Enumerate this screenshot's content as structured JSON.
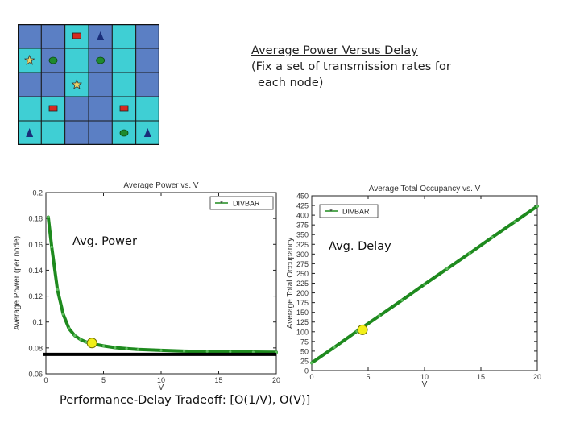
{
  "note": {
    "line1": "Average Power Versus Delay",
    "line2": "(Fix a set of transmission rates for",
    "line3": "each node)"
  },
  "labels": {
    "power": "Avg. Power",
    "delay": "Avg. Delay",
    "tradeoff": "Performance-Delay Tradeoff:  [O(1/V), O(V)]"
  },
  "colors": {
    "cell_dark": "#5b7fc4",
    "cell_light": "#3fcfd4",
    "curve": "#1e8a1e",
    "marker": "#f2ef1a",
    "floor_line": "#000000"
  },
  "network_grid": {
    "rows": 5,
    "cols": 6,
    "cell_pattern": [
      [
        "dark",
        "dark",
        "light",
        "dark",
        "light",
        "dark"
      ],
      [
        "light",
        "dark",
        "light",
        "dark",
        "light",
        "dark"
      ],
      [
        "dark",
        "dark",
        "light",
        "dark",
        "light",
        "dark"
      ],
      [
        "light",
        "light",
        "dark",
        "dark",
        "light",
        "light"
      ],
      [
        "light",
        "light",
        "dark",
        "dark",
        "light",
        "light"
      ]
    ],
    "nodes": [
      {
        "row": 0,
        "col": 2,
        "type": "square-icon"
      },
      {
        "row": 0,
        "col": 3,
        "type": "triangle-icon"
      },
      {
        "row": 1,
        "col": 0,
        "type": "star-icon"
      },
      {
        "row": 1,
        "col": 1,
        "type": "circle-icon"
      },
      {
        "row": 1,
        "col": 3,
        "type": "circle-icon"
      },
      {
        "row": 2,
        "col": 2,
        "type": "star-icon"
      },
      {
        "row": 3,
        "col": 1,
        "type": "square-icon"
      },
      {
        "row": 3,
        "col": 4,
        "type": "square-icon"
      },
      {
        "row": 4,
        "col": 0,
        "type": "triangle-icon"
      },
      {
        "row": 4,
        "col": 4,
        "type": "circle-icon"
      },
      {
        "row": 4,
        "col": 5,
        "type": "triangle-icon"
      }
    ],
    "node_colors": {
      "square-icon": "#d62a20",
      "triangle-icon": "#1a2e7a",
      "star-icon": "#e8d36a",
      "circle-icon": "#1e8a2e"
    }
  },
  "chart_data": [
    {
      "type": "line",
      "title": "Average Power vs. V",
      "xlabel": "V",
      "ylabel": "Average Power (per node)",
      "xlim": [
        0,
        20
      ],
      "ylim": [
        0.06,
        0.2
      ],
      "xticks": [
        0,
        5,
        10,
        15,
        20
      ],
      "xtick_labels": [
        "0",
        "5",
        "10",
        "15",
        "20"
      ],
      "yticks": [
        0.06,
        0.08,
        0.1,
        0.12,
        0.14,
        0.16,
        0.18,
        0.2
      ],
      "ytick_labels": [
        "0.06",
        "0.08",
        "0.1",
        "0.12",
        "0.14",
        "0.16",
        "0.18",
        "0.2"
      ],
      "legend": {
        "position": "top-right",
        "entries": [
          "DIVBAR"
        ]
      },
      "series": [
        {
          "name": "DIVBAR",
          "x": [
            0.2,
            0.5,
            1,
            1.5,
            2,
            2.5,
            3,
            3.5,
            4,
            5,
            6,
            7,
            8,
            10,
            12,
            14,
            16,
            18,
            20
          ],
          "y": [
            0.181,
            0.158,
            0.125,
            0.106,
            0.095,
            0.0895,
            0.0865,
            0.0845,
            0.0833,
            0.0815,
            0.0802,
            0.0795,
            0.0788,
            0.0781,
            0.0775,
            0.0772,
            0.077,
            0.0768,
            0.0766
          ]
        }
      ],
      "floor_line_y": 0.075,
      "highlight": {
        "x": 4,
        "y": 0.0838
      }
    },
    {
      "type": "line",
      "title": "Average Total Occupancy vs. V",
      "xlabel": "V",
      "ylabel": "Average Total Occupancy",
      "xlim": [
        0,
        20
      ],
      "ylim": [
        0,
        450
      ],
      "xticks": [
        0,
        5,
        10,
        15,
        20
      ],
      "xtick_labels": [
        "0",
        "5",
        "10",
        "15",
        "20"
      ],
      "yticks": [
        0,
        25,
        50,
        75,
        100,
        125,
        150,
        175,
        200,
        225,
        250,
        275,
        300,
        325,
        350,
        375,
        400,
        425,
        450
      ],
      "ytick_labels": [
        "0",
        "25",
        "50",
        "75",
        "100",
        "125",
        "150",
        "175",
        "200",
        "225",
        "250",
        "275",
        "300",
        "325",
        "350",
        "375",
        "400",
        "425",
        "450"
      ],
      "legend": {
        "position": "top-left",
        "entries": [
          "DIVBAR"
        ]
      },
      "series": [
        {
          "name": "DIVBAR",
          "x": [
            0,
            2,
            4,
            6,
            8,
            10,
            12,
            14,
            16,
            18,
            20
          ],
          "y": [
            20,
            60,
            101,
            141,
            181,
            222,
            262,
            302,
            343,
            383,
            423
          ]
        }
      ],
      "highlight": {
        "x": 4.5,
        "y": 105
      }
    }
  ]
}
